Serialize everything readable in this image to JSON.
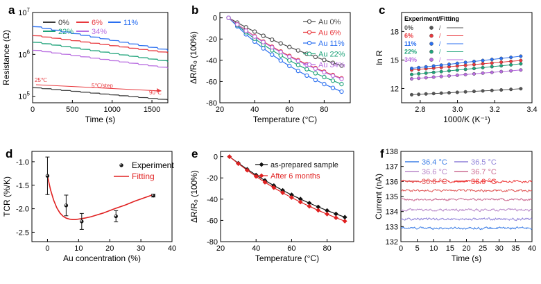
{
  "chart_data": [
    {
      "panel": "a",
      "type": "line",
      "xlabel": "Time (s)",
      "ylabel": "Resistance (Ω)",
      "xlim": [
        0,
        1700
      ],
      "ylim": [
        70000,
        10000000
      ],
      "yscale": "log",
      "xticks": [
        0,
        500,
        1000,
        1500
      ],
      "yticks": [
        {
          "v": 100000,
          "base": "10",
          "exp": "5"
        },
        {
          "v": 1000000,
          "base": "10",
          "exp": "6"
        },
        {
          "v": 10000000,
          "base": "10",
          "exp": "7"
        }
      ],
      "steps": 14,
      "annotations": {
        "start": "25℃",
        "step": "5℃/step",
        "end": "90℃"
      },
      "legend_layout": "top",
      "series": [
        {
          "name": "0%",
          "color": "#3a3a3a",
          "start": 160000,
          "end": 85000
        },
        {
          "name": "6%",
          "color": "#e8383d",
          "start": 2800000,
          "end": 1150000
        },
        {
          "name": "11%",
          "color": "#2a6ff0",
          "start": 4600000,
          "end": 1350000
        },
        {
          "name": "22%",
          "color": "#1fa37a",
          "start": 1950000,
          "end": 720000
        },
        {
          "name": "34%",
          "color": "#b86ce0",
          "start": 1250000,
          "end": 500000
        }
      ]
    },
    {
      "panel": "b",
      "type": "line",
      "xlabel": "Temperature (°C)",
      "ylabel": "ΔR/R₀ (100%)",
      "xlim": [
        20,
        95
      ],
      "ylim": [
        -80,
        5
      ],
      "xticks": [
        20,
        40,
        60,
        80
      ],
      "yticks": [
        0,
        -20,
        -40,
        -60,
        -80
      ],
      "x": [
        25,
        30,
        35,
        40,
        45,
        50,
        55,
        60,
        65,
        70,
        75,
        80,
        85,
        90
      ],
      "legend_layout": "top-right",
      "series": [
        {
          "name": "Au 0%",
          "color": "#4a4a4a",
          "values": [
            0,
            -4.5,
            -8.9,
            -13.0,
            -16.9,
            -20.6,
            -24.1,
            -27.5,
            -30.7,
            -33.8,
            -36.8,
            -39.7,
            -42.4,
            -45.0
          ]
        },
        {
          "name": "Au 6%",
          "color": "#e8383d",
          "values": [
            0,
            -6.1,
            -11.9,
            -17.3,
            -22.4,
            -27.2,
            -31.7,
            -35.9,
            -39.9,
            -43.7,
            -47.3,
            -50.7,
            -53.9,
            -57.0
          ]
        },
        {
          "name": "Au 11%",
          "color": "#2a6ff0",
          "values": [
            0,
            -8.0,
            -15.5,
            -22.4,
            -28.8,
            -34.7,
            -40.2,
            -45.3,
            -50.0,
            -54.4,
            -58.5,
            -62.4,
            -66.0,
            -69.5
          ]
        },
        {
          "name": "Au 22%",
          "color": "#1fa37a",
          "values": [
            0,
            -7.0,
            -13.6,
            -19.7,
            -25.3,
            -30.6,
            -35.5,
            -40.1,
            -44.4,
            -48.4,
            -52.2,
            -55.8,
            -59.2,
            -62.4
          ]
        },
        {
          "name": "Au 34%",
          "color": "#b86ce0",
          "values": [
            0,
            -6.3,
            -12.2,
            -17.7,
            -22.9,
            -27.8,
            -32.3,
            -36.6,
            -40.6,
            -44.4,
            -47.9,
            -51.3,
            -54.5,
            -57.5
          ]
        }
      ]
    },
    {
      "panel": "c",
      "type": "scatter",
      "xlabel": "1000/K (K⁻¹)",
      "ylabel": "ln R",
      "xlim": [
        2.7,
        3.4
      ],
      "ylim": [
        10.5,
        20
      ],
      "xticks": [
        2.8,
        3.0,
        3.2,
        3.4
      ],
      "yticks": [
        12,
        15,
        18
      ],
      "x": [
        2.754,
        2.792,
        2.831,
        2.872,
        2.913,
        2.955,
        2.999,
        3.043,
        3.089,
        3.136,
        3.185,
        3.235,
        3.287,
        3.34
      ],
      "legend_title": "Experiment/Fitting",
      "legend_sep": "/",
      "legend_layout": "top-left",
      "series": [
        {
          "name": "0%",
          "color": "#555555",
          "values": [
            11.35,
            11.39,
            11.43,
            11.47,
            11.51,
            11.55,
            11.6,
            11.65,
            11.7,
            11.75,
            11.8,
            11.85,
            11.91,
            11.98
          ]
        },
        {
          "name": "6%",
          "color": "#e8383d",
          "values": [
            13.95,
            14.02,
            14.08,
            14.15,
            14.22,
            14.29,
            14.37,
            14.44,
            14.52,
            14.6,
            14.68,
            14.77,
            14.86,
            14.95
          ]
        },
        {
          "name": "11%",
          "color": "#2a6ff0",
          "values": [
            14.12,
            14.2,
            14.28,
            14.37,
            14.46,
            14.55,
            14.65,
            14.75,
            14.85,
            14.95,
            15.06,
            15.17,
            15.28,
            15.4
          ]
        },
        {
          "name": "22%",
          "color": "#1fa37a",
          "values": [
            13.48,
            13.55,
            13.62,
            13.7,
            13.78,
            13.86,
            13.94,
            14.02,
            14.11,
            14.2,
            14.3,
            14.39,
            14.49,
            14.6
          ]
        },
        {
          "name": "34%",
          "color": "#b86ce0",
          "values": [
            13.02,
            13.08,
            13.14,
            13.2,
            13.27,
            13.33,
            13.4,
            13.47,
            13.54,
            13.62,
            13.7,
            13.78,
            13.86,
            13.95
          ]
        }
      ]
    },
    {
      "panel": "d",
      "type": "scatter",
      "xlabel": "Au concentration (%)",
      "ylabel": "TCR (%/K)",
      "xlim": [
        -5,
        40
      ],
      "ylim": [
        -2.7,
        -0.78
      ],
      "xticks": [
        0,
        10,
        20,
        30,
        40
      ],
      "yticks": [
        -1.0,
        -1.5,
        -2.0,
        -2.5
      ],
      "legend_layout": "top-right",
      "experiment": {
        "name": "Experiment",
        "color": "#222222",
        "x": [
          0,
          6,
          11,
          22,
          34
        ],
        "y": [
          -1.3,
          -1.93,
          -2.27,
          -2.16,
          -1.72
        ],
        "err": [
          0.4,
          0.22,
          0.17,
          0.12,
          0.03
        ]
      },
      "fitting": {
        "name": "Fitting",
        "color": "#e02020",
        "x": [
          0,
          1,
          2,
          3,
          4,
          5,
          6,
          7,
          8,
          9,
          10,
          11,
          12,
          14,
          16,
          18,
          20,
          22,
          25,
          28,
          31,
          34
        ],
        "y": [
          -1.3,
          -1.6,
          -1.82,
          -1.98,
          -2.09,
          -2.16,
          -2.2,
          -2.22,
          -2.23,
          -2.23,
          -2.22,
          -2.21,
          -2.2,
          -2.17,
          -2.13,
          -2.09,
          -2.04,
          -1.99,
          -1.92,
          -1.84,
          -1.77,
          -1.7
        ]
      }
    },
    {
      "panel": "e",
      "type": "line",
      "xlabel": "Temperature (°C)",
      "ylabel": "ΔR/R₀ (100%)",
      "xlim": [
        20,
        95
      ],
      "ylim": [
        -80,
        5
      ],
      "xticks": [
        20,
        40,
        60,
        80
      ],
      "yticks": [
        0,
        -20,
        -40,
        -60,
        -80
      ],
      "x": [
        25,
        30,
        35,
        40,
        45,
        50,
        55,
        60,
        65,
        70,
        75,
        80,
        85,
        90
      ],
      "legend_layout": "top-right",
      "series": [
        {
          "name": "as-prepared sample",
          "color": "#111111",
          "values": [
            0,
            -6.1,
            -11.9,
            -17.3,
            -22.4,
            -27.2,
            -31.7,
            -35.9,
            -39.9,
            -43.7,
            -47.3,
            -50.7,
            -53.9,
            -57.0
          ]
        },
        {
          "name": "After 6 months",
          "color": "#e02020",
          "values": [
            0,
            -6.6,
            -12.8,
            -18.6,
            -24.1,
            -29.2,
            -34.0,
            -38.5,
            -42.7,
            -46.7,
            -50.5,
            -54.1,
            -57.5,
            -60.7
          ]
        }
      ]
    },
    {
      "panel": "f",
      "type": "line",
      "xlabel": "Time (s)",
      "ylabel": "Current (nA)",
      "xlim": [
        0,
        40
      ],
      "ylim": [
        132,
        138
      ],
      "xticks": [
        0,
        5,
        10,
        15,
        20,
        25,
        30,
        35,
        40
      ],
      "yticks": [
        132,
        133,
        134,
        135,
        136,
        137,
        138
      ],
      "noise_amplitude": 0.13,
      "legend_layout": "top",
      "series": [
        {
          "name": "36.4 °C",
          "color": "#3d7ee6",
          "mean": 132.9
        },
        {
          "name": "36.5 °C",
          "color": "#8d7fd8",
          "mean": 133.5
        },
        {
          "name": "36.6 °C",
          "color": "#b786c8",
          "mean": 134.1
        },
        {
          "name": "36.7 °C",
          "color": "#cc6c92",
          "mean": 134.8
        },
        {
          "name": "36.8 °C",
          "color": "#e05555",
          "mean": 135.4
        },
        {
          "name": "36.9 °C",
          "color": "#ee3a3a",
          "mean": 136.0
        }
      ]
    }
  ]
}
